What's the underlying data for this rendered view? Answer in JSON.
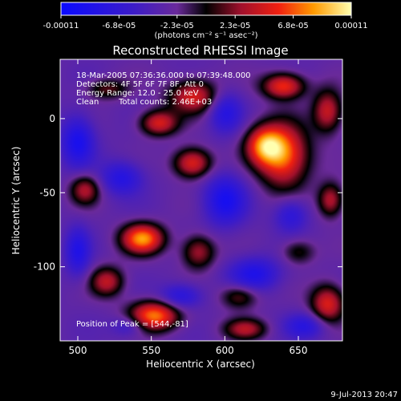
{
  "chart_data": {
    "type": "heatmap",
    "title": "Reconstructed RHESSI Image",
    "xlabel": "Heliocentric X (arcsec)",
    "ylabel": "Heliocentric Y (arcsec)",
    "xlim": [
      488,
      680
    ],
    "ylim": [
      -150,
      40
    ],
    "x_ticks": [
      500,
      550,
      600,
      650
    ],
    "y_ticks": [
      0,
      -50,
      -100
    ],
    "colorbar": {
      "range": [
        -0.00011,
        0.00011
      ],
      "tick_labels": [
        "-0.00011",
        "-6.8e-05",
        "-2.3e-05",
        "2.3e-05",
        "6.8e-05",
        "0.00011"
      ],
      "units_label": "(photons cm⁻² s⁻¹ asec⁻²)"
    },
    "annotations": {
      "time": "18-Mar-2005 07:36:36.000 to 07:39:48.000",
      "detectors": "Detectors: 4F 5F 6F 7F 8F, Att 0",
      "energy": "Energy Range: 12.0 - 25.0 keV",
      "clean": "Clean",
      "counts": "Total counts: 2.46E+03",
      "peak": "Position of Peak = [544,-81]"
    },
    "footer_date": "9-Jul-2013 20:47",
    "peak": {
      "x": 544,
      "y": -81
    },
    "sources": [
      {
        "x": 544,
        "y": -81,
        "amp": 1.0,
        "sx": 10,
        "sy": 7
      },
      {
        "x": 552,
        "y": -133,
        "amp": 0.95,
        "sx": 12,
        "sy": 7
      },
      {
        "x": 640,
        "y": -25,
        "amp": 0.92,
        "sx": 12,
        "sy": 15
      },
      {
        "x": 627,
        "y": -18,
        "amp": 0.8,
        "sx": 9,
        "sy": 9
      },
      {
        "x": 640,
        "y": 22,
        "amp": 0.8,
        "sx": 10,
        "sy": 6
      },
      {
        "x": 579,
        "y": 15,
        "amp": 0.7,
        "sx": 12,
        "sy": 8
      },
      {
        "x": 555,
        "y": -3,
        "amp": 0.7,
        "sx": 9,
        "sy": 6
      },
      {
        "x": 578,
        "y": -30,
        "amp": 0.75,
        "sx": 9,
        "sy": 7
      },
      {
        "x": 670,
        "y": 5,
        "amp": 0.65,
        "sx": 7,
        "sy": 10
      },
      {
        "x": 670,
        "y": -125,
        "amp": 0.72,
        "sx": 8,
        "sy": 9
      },
      {
        "x": 614,
        "y": -142,
        "amp": 0.55,
        "sx": 10,
        "sy": 5
      },
      {
        "x": 672,
        "y": -55,
        "amp": 0.6,
        "sx": 6,
        "sy": 8
      },
      {
        "x": 582,
        "y": -90,
        "amp": 0.55,
        "sx": 8,
        "sy": 8
      },
      {
        "x": 520,
        "y": -110,
        "amp": 0.6,
        "sx": 8,
        "sy": 7
      },
      {
        "x": 505,
        "y": -48,
        "amp": 0.55,
        "sx": 7,
        "sy": 7
      },
      {
        "x": 610,
        "y": -120,
        "amp": 0.45,
        "sx": 9,
        "sy": 6
      },
      {
        "x": 520,
        "y": 20,
        "amp": 0.4,
        "sx": 10,
        "sy": 5
      },
      {
        "x": 650,
        "y": -90,
        "amp": 0.35,
        "sx": 8,
        "sy": 6
      },
      {
        "x": 500,
        "y": -15,
        "amp": -0.55,
        "sx": 8,
        "sy": 12
      },
      {
        "x": 530,
        "y": -40,
        "amp": -0.45,
        "sx": 10,
        "sy": 8
      },
      {
        "x": 600,
        "y": -55,
        "amp": -0.55,
        "sx": 10,
        "sy": 12
      },
      {
        "x": 600,
        "y": 5,
        "amp": -0.45,
        "sx": 8,
        "sy": 10
      },
      {
        "x": 620,
        "y": -105,
        "amp": -0.5,
        "sx": 12,
        "sy": 8
      },
      {
        "x": 570,
        "y": -120,
        "amp": -0.45,
        "sx": 10,
        "sy": 6
      },
      {
        "x": 645,
        "y": -65,
        "amp": -0.4,
        "sx": 8,
        "sy": 8
      },
      {
        "x": 500,
        "y": -90,
        "amp": -0.45,
        "sx": 6,
        "sy": 12
      },
      {
        "x": 655,
        "y": -140,
        "amp": -0.4,
        "sx": 10,
        "sy": 6
      },
      {
        "x": 535,
        "y": -140,
        "amp": -0.35,
        "sx": 8,
        "sy": 5
      }
    ]
  }
}
